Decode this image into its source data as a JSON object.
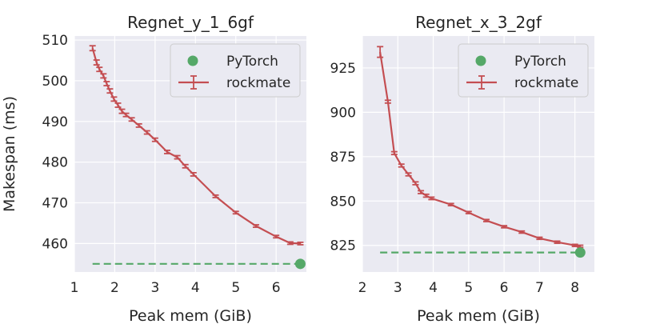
{
  "chart_data": [
    {
      "type": "line",
      "title": "Regnet_y_1_6gf",
      "xlabel": "Peak mem (GiB)",
      "ylabel": "Makespan (ms)",
      "xlim": [
        1.0,
        6.75
      ],
      "ylim": [
        453,
        511
      ],
      "xticks": [
        1,
        2,
        3,
        4,
        5,
        6
      ],
      "yticks": [
        460,
        470,
        480,
        490,
        500,
        510
      ],
      "grid": true,
      "legend_position": "top-right",
      "series": [
        {
          "name": "rockmate",
          "kind": "line-errorbar",
          "color": "#c44e52",
          "x": [
            1.45,
            1.55,
            1.62,
            1.72,
            1.8,
            1.88,
            1.98,
            2.08,
            2.18,
            2.28,
            2.42,
            2.6,
            2.8,
            3.0,
            3.3,
            3.55,
            3.75,
            3.95,
            4.5,
            5.0,
            5.5,
            6.0,
            6.35,
            6.6
          ],
          "y": [
            508,
            504.5,
            502.8,
            501.2,
            499.3,
            497.5,
            495.5,
            494,
            492.5,
            491.6,
            490.5,
            489,
            487.3,
            485.5,
            482.5,
            481.2,
            479,
            477,
            471.6,
            467.6,
            464.3,
            461.7,
            460.1,
            460
          ],
          "err": [
            0.6,
            0.6,
            0.5,
            0.5,
            0.5,
            0.5,
            0.5,
            0.5,
            0.5,
            0.4,
            0.4,
            0.4,
            0.4,
            0.4,
            0.4,
            0.4,
            0.4,
            0.4,
            0.3,
            0.3,
            0.3,
            0.3,
            0.3,
            0.3
          ]
        },
        {
          "name": "PyTorch",
          "kind": "point",
          "color": "#55a868",
          "x": [
            6.6
          ],
          "y": [
            455
          ]
        }
      ],
      "reference_line": {
        "y": 455,
        "x_from": 1.45,
        "x_to": 6.6,
        "style": "dashed",
        "color": "#55a868"
      }
    },
    {
      "type": "line",
      "title": "Regnet_x_3_2gf",
      "xlabel": "Peak mem (GiB)",
      "ylabel": "",
      "xlim": [
        2.0,
        8.55
      ],
      "ylim": [
        810,
        943
      ],
      "xticks": [
        2,
        3,
        4,
        5,
        6,
        7,
        8
      ],
      "yticks": [
        825,
        850,
        875,
        900,
        925
      ],
      "grid": true,
      "legend_position": "top-right",
      "series": [
        {
          "name": "rockmate",
          "kind": "line-errorbar",
          "color": "#c44e52",
          "x": [
            2.5,
            2.72,
            2.9,
            3.1,
            3.3,
            3.5,
            3.65,
            3.8,
            3.95,
            4.5,
            5.0,
            5.5,
            6.0,
            6.5,
            7.0,
            7.5,
            8.0,
            8.15
          ],
          "y": [
            934,
            906,
            877,
            870,
            865,
            860,
            855,
            853,
            851.5,
            848,
            843.5,
            839,
            835.5,
            832.5,
            829,
            826.8,
            825,
            824.5
          ],
          "err": [
            3,
            0.8,
            0.8,
            0.8,
            0.8,
            0.8,
            0.8,
            0.8,
            0.7,
            0.6,
            0.6,
            0.6,
            0.6,
            0.6,
            0.6,
            0.6,
            0.6,
            0.6
          ]
        },
        {
          "name": "PyTorch",
          "kind": "point",
          "color": "#55a868",
          "x": [
            8.15
          ],
          "y": [
            821
          ]
        }
      ],
      "reference_line": {
        "y": 821,
        "x_from": 2.5,
        "x_to": 8.15,
        "style": "dashed",
        "color": "#55a868"
      }
    }
  ],
  "style": {
    "panel_bg": "#eaeaf2",
    "grid_color": "#ffffff",
    "legend_bg": "#eaeaf2",
    "legend_border": "#cccccc"
  }
}
